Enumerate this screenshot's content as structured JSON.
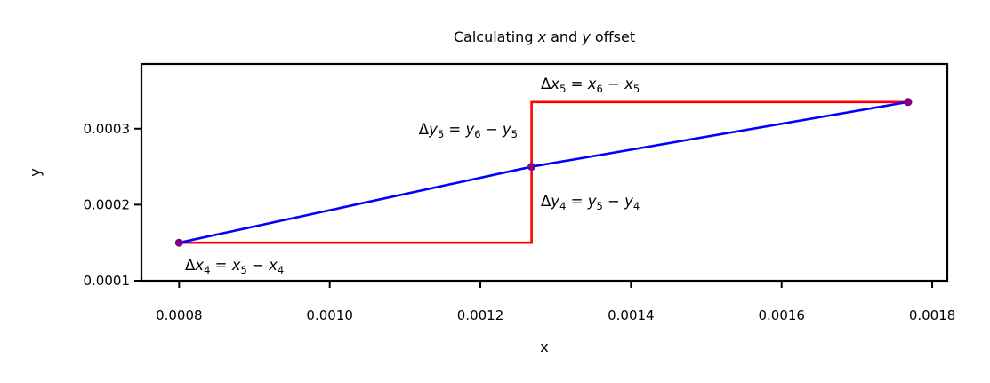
{
  "chart_data": {
    "type": "line",
    "title_parts": [
      "Calculating ",
      "x",
      " and ",
      "y",
      " offset"
    ],
    "xlabel": "x",
    "ylabel": "y",
    "xlim": [
      0.00075,
      0.00182
    ],
    "ylim": [
      0.0001,
      0.000385
    ],
    "xticks": [
      0.0008,
      0.001,
      0.0012,
      0.0014,
      0.0016,
      0.0018
    ],
    "xtick_labels": [
      "0.0008",
      "0.0010",
      "0.0012",
      "0.0014",
      "0.0016",
      "0.0018"
    ],
    "yticks": [
      0.0001,
      0.0002,
      0.0003
    ],
    "ytick_labels": [
      "0.0001",
      "0.0002",
      "0.0003"
    ],
    "grid": false,
    "colors": {
      "line": "#0000ff",
      "steps": "#ff0000",
      "points": "#800080"
    },
    "series": [
      {
        "type": "line",
        "x": [
          0.0008,
          0.001268,
          0.001768
        ],
        "y": [
          0.00015,
          0.00025,
          0.000335
        ]
      },
      {
        "type": "step",
        "x": [
          0.0008,
          0.001268,
          0.001268,
          0.001768
        ],
        "y": [
          0.00015,
          0.00015,
          0.000335,
          0.000335
        ]
      },
      {
        "type": "scatter",
        "x": [
          0.0008,
          0.001268,
          0.001768
        ],
        "y": [
          0.00015,
          0.00025,
          0.000335
        ]
      }
    ],
    "annotations": [
      {
        "delta": "Δ",
        "lhs_var": "x",
        "lhs_sub": "4",
        "a_var": "x",
        "a_sub": "5",
        "b_var": "x",
        "b_sub": "4"
      },
      {
        "delta": "Δ",
        "lhs_var": "y",
        "lhs_sub": "4",
        "a_var": "y",
        "a_sub": "5",
        "b_var": "y",
        "b_sub": "4"
      },
      {
        "delta": "Δ",
        "lhs_var": "y",
        "lhs_sub": "5",
        "a_var": "y",
        "a_sub": "6",
        "b_var": "y",
        "b_sub": "5"
      },
      {
        "delta": "Δ",
        "lhs_var": "x",
        "lhs_sub": "5",
        "a_var": "x",
        "a_sub": "6",
        "b_var": "x",
        "b_sub": "5"
      }
    ]
  }
}
